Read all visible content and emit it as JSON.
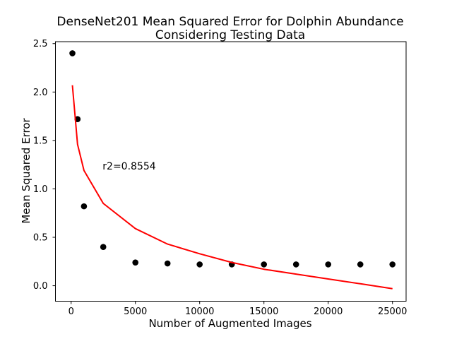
{
  "figure": {
    "background": "#ffffff"
  },
  "chart_data": {
    "type": "scatter",
    "title_line1": "DenseNet201 Mean Squared Error for Dolphin Abundance",
    "title_line2": "Considering Testing Data",
    "xlabel": "Number of Augmented Images",
    "ylabel": "Mean Squared Error",
    "annotation": {
      "text": "r2=0.8554",
      "x": 2450,
      "y": 1.2
    },
    "xlim": [
      -1220,
      26060
    ],
    "ylim": [
      -0.16,
      2.52
    ],
    "grid": false,
    "legend": null,
    "x_ticks": [
      {
        "value": 0,
        "label": "0"
      },
      {
        "value": 5000,
        "label": "5000"
      },
      {
        "value": 10000,
        "label": "10000"
      },
      {
        "value": 15000,
        "label": "15000"
      },
      {
        "value": 20000,
        "label": "20000"
      },
      {
        "value": 25000,
        "label": "25000"
      }
    ],
    "y_ticks": [
      {
        "value": 0.0,
        "label": "0.0"
      },
      {
        "value": 0.5,
        "label": "0.5"
      },
      {
        "value": 1.0,
        "label": "1.0"
      },
      {
        "value": 1.5,
        "label": "1.5"
      },
      {
        "value": 2.0,
        "label": "2.0"
      },
      {
        "value": 2.5,
        "label": "2.5"
      }
    ],
    "scatter": {
      "name": "testing-data-points",
      "color": "#000000",
      "marker": "circle",
      "x": [
        100,
        500,
        1000,
        2500,
        5000,
        7500,
        10000,
        12500,
        15000,
        17500,
        20000,
        22500,
        25000
      ],
      "y": [
        2.4,
        1.72,
        0.82,
        0.4,
        0.24,
        0.23,
        0.22,
        0.22,
        0.22,
        0.22,
        0.22,
        0.22,
        0.22
      ]
    },
    "fit_line": {
      "name": "log-fit-curve",
      "color": "#ff0000",
      "x": [
        100,
        500,
        1000,
        2500,
        5000,
        7500,
        10000,
        12500,
        15000,
        17500,
        20000,
        22500,
        25000
      ],
      "y": [
        2.07,
        1.46,
        1.19,
        0.85,
        0.59,
        0.43,
        0.33,
        0.24,
        0.17,
        0.12,
        0.07,
        0.02,
        -0.03
      ]
    }
  }
}
